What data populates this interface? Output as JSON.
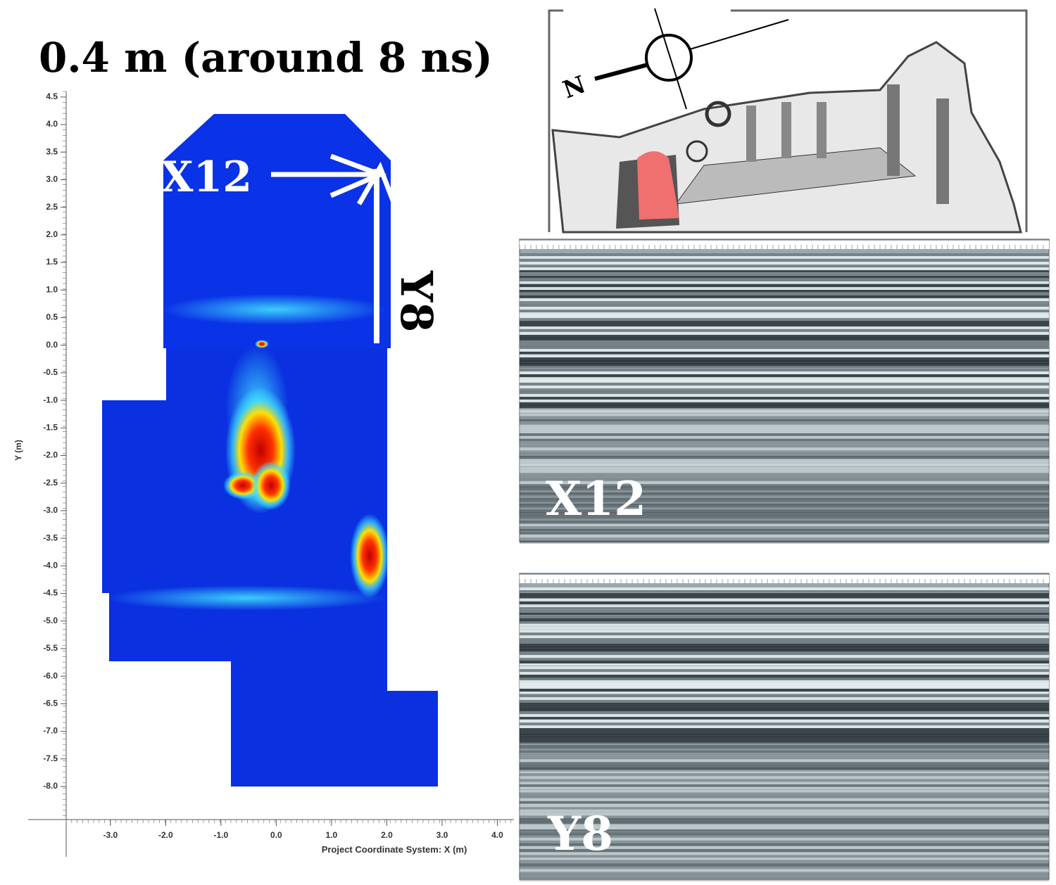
{
  "title": "0.4 m (around 8 ns)",
  "slice_map": {
    "xlabel": "Project Coordinate System: X (m)",
    "ylabel": "Y (m)",
    "xlim": [
      -3.8,
      4.3
    ],
    "ylim": [
      -8.6,
      4.6
    ],
    "xticks": [
      {
        "value": -3,
        "label": "-3.0"
      },
      {
        "value": -2,
        "label": "-2.0"
      },
      {
        "value": -1,
        "label": "-1.0"
      },
      {
        "value": 0,
        "label": "0.0"
      },
      {
        "value": 1,
        "label": "1.0"
      },
      {
        "value": 2,
        "label": "2.0"
      },
      {
        "value": 3,
        "label": "3.0"
      },
      {
        "value": 4,
        "label": "4.0"
      }
    ],
    "yticks": [
      4.5,
      {
        "value": 4,
        "label": "4.0"
      },
      3.5,
      {
        "value": 3,
        "label": "3.0"
      },
      2.5,
      {
        "value": 2,
        "label": "2.0"
      },
      1.5,
      {
        "value": 1,
        "label": "1.0"
      },
      0.5,
      {
        "value": 0,
        "label": "0.0"
      },
      -0.5,
      {
        "value": -1,
        "label": "-1.0"
      },
      -1.5,
      {
        "value": -2,
        "label": "-2.0"
      },
      -2.5,
      {
        "value": -3,
        "label": "-3.0"
      },
      -3.5,
      {
        "value": -4,
        "label": "-4.0"
      },
      -4.5,
      {
        "value": -5,
        "label": "-5.0"
      },
      -5.5,
      {
        "value": -6,
        "label": "-6.0"
      },
      -6.5,
      {
        "value": -7,
        "label": "-7.0"
      },
      -7.5,
      {
        "value": -8,
        "label": "-8.0"
      }
    ],
    "profile_labels": [
      "X12",
      "Y8"
    ]
  },
  "site_plan": {
    "north_label": "N"
  },
  "radargrams": [
    {
      "label": "X12"
    },
    {
      "label": "Y8"
    }
  ]
}
